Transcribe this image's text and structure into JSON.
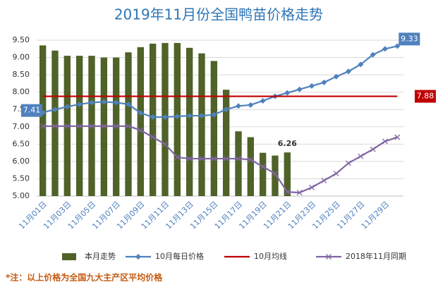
{
  "chart_data": {
    "type": "combo",
    "title": "2019年11月份全国鸭苗价格走势",
    "categories": [
      "11月01日",
      null,
      "11月03日",
      null,
      "11月05日",
      null,
      "11月07日",
      null,
      "11月09日",
      null,
      "11月11日",
      null,
      "11月13日",
      null,
      "11月15日",
      null,
      "11月17日",
      null,
      "11月19日",
      null,
      "11月21日",
      null,
      "11月23日",
      null,
      "11月25日",
      null,
      "11月27日",
      null,
      "11月29日",
      null
    ],
    "ylim": [
      5,
      9.5
    ],
    "yticks": [
      {
        "value": 5,
        "label": "5.00"
      },
      {
        "value": 5.5,
        "label": "5.50"
      },
      {
        "value": 6,
        "label": "6.00"
      },
      {
        "value": 6.5,
        "label": "6.50"
      },
      {
        "value": 7,
        "label": "7.00"
      },
      {
        "value": 7.5,
        "label": "7.50"
      },
      {
        "value": 8,
        "label": "8.00"
      },
      {
        "value": 8.5,
        "label": "8.50"
      },
      {
        "value": 9,
        "label": "9.00"
      },
      {
        "value": 9.5,
        "label": "9.50"
      }
    ],
    "grid": true,
    "legend": "bottom",
    "series": [
      {
        "name": "本月走势",
        "type": "bar",
        "color": "#4f6228",
        "marker": "none",
        "values": [
          9.35,
          9.2,
          9.05,
          9.05,
          9.05,
          9.0,
          9.0,
          9.15,
          9.3,
          9.4,
          9.42,
          9.42,
          9.28,
          9.12,
          8.9,
          8.07,
          6.87,
          6.7,
          6.25,
          6.17,
          6.26,
          null,
          null,
          null,
          null,
          null,
          null,
          null,
          null,
          null
        ],
        "value_labels": [
          null,
          null,
          null,
          null,
          null,
          null,
          null,
          null,
          null,
          null,
          null,
          null,
          null,
          null,
          null,
          null,
          null,
          null,
          null,
          null,
          "6.26",
          null,
          null,
          null,
          null,
          null,
          null,
          null,
          null,
          null
        ]
      },
      {
        "name": "10月每日价格",
        "type": "line",
        "color": "#4f81bd",
        "marker": "diamond",
        "values": [
          7.41,
          7.5,
          7.58,
          7.65,
          7.7,
          7.72,
          7.7,
          7.65,
          7.4,
          7.28,
          7.28,
          7.3,
          7.32,
          7.32,
          7.35,
          7.5,
          7.6,
          7.63,
          7.75,
          7.88,
          7.98,
          8.08,
          8.18,
          8.28,
          8.45,
          8.6,
          8.8,
          9.08,
          9.25,
          9.33
        ],
        "value_labels": [
          "7.41",
          null,
          null,
          null,
          null,
          null,
          null,
          null,
          null,
          null,
          null,
          null,
          null,
          null,
          null,
          null,
          null,
          null,
          null,
          null,
          null,
          null,
          null,
          null,
          null,
          null,
          null,
          null,
          null,
          "9.33"
        ]
      },
      {
        "name": "10月均线",
        "type": "line",
        "color": "#c00000",
        "marker": "none",
        "values": [
          7.88,
          7.88,
          7.88,
          7.88,
          7.88,
          7.88,
          7.88,
          7.88,
          7.88,
          7.88,
          7.88,
          7.88,
          7.88,
          7.88,
          7.88,
          7.88,
          7.88,
          7.88,
          7.88,
          7.88,
          7.88,
          7.88,
          7.88,
          7.88,
          7.88,
          7.88,
          7.88,
          7.88,
          7.88,
          7.88
        ],
        "value_labels": [
          null,
          null,
          null,
          null,
          null,
          null,
          null,
          null,
          null,
          null,
          null,
          null,
          null,
          null,
          null,
          null,
          null,
          null,
          null,
          null,
          null,
          null,
          null,
          null,
          null,
          null,
          null,
          null,
          null,
          "7.88"
        ]
      },
      {
        "name": "2018年11月同期",
        "type": "line",
        "color": "#8064a2",
        "marker": "x",
        "values": [
          7.02,
          7.02,
          7.02,
          7.02,
          7.02,
          7.02,
          7.02,
          7.02,
          6.9,
          6.7,
          6.5,
          6.12,
          6.08,
          6.08,
          6.08,
          6.08,
          6.08,
          6.05,
          5.85,
          5.65,
          5.12,
          5.1,
          5.25,
          5.45,
          5.65,
          5.95,
          6.15,
          6.35,
          6.58,
          6.7
        ]
      }
    ],
    "footnote": "*注：以上价格为全国九大主产区平均价格"
  }
}
